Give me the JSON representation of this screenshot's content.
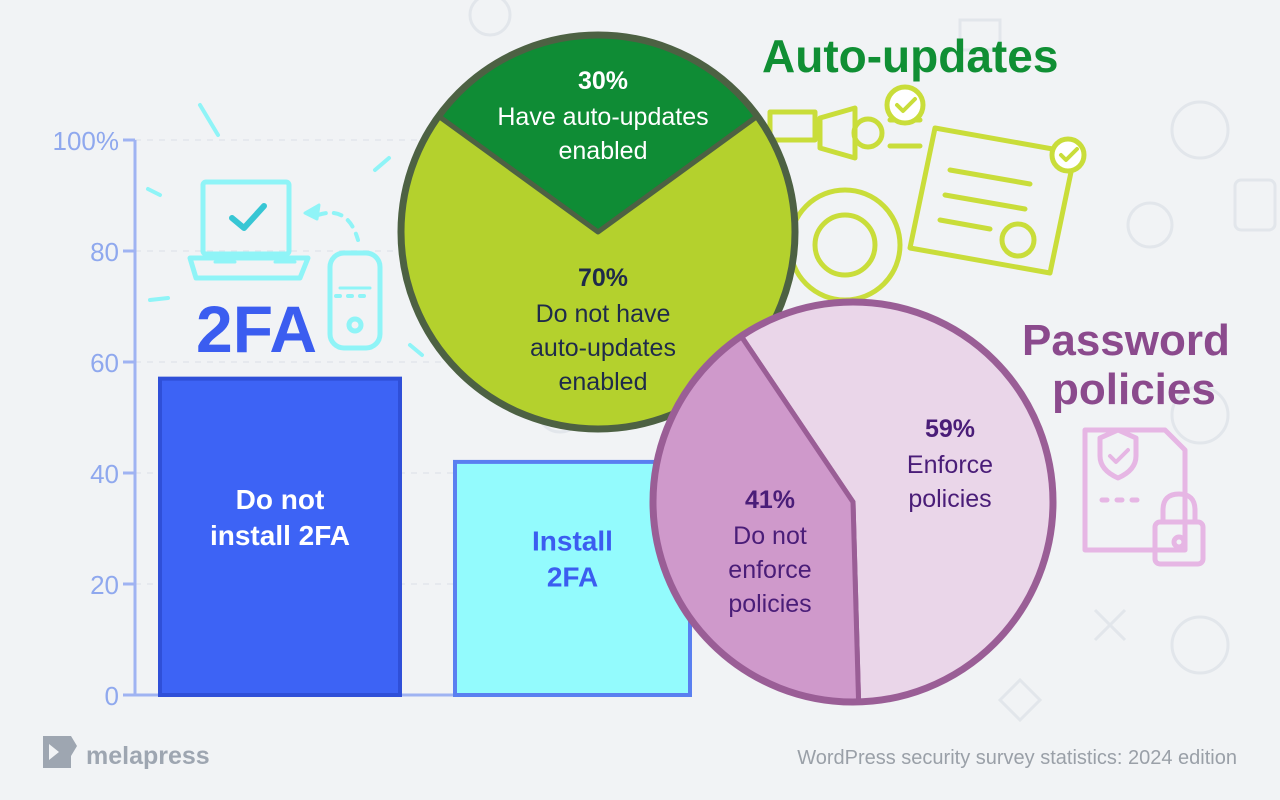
{
  "colors": {
    "background": "#f1f3f5",
    "axis": "#9fb3f2",
    "axis_text": "#8fa8ee",
    "bar_dark": "#3d63f5",
    "bar_light": "#93fbfd",
    "label_blue": "#3b5df0",
    "pie_green_dark": "#0f8c35",
    "pie_green_light": "#b4d12d",
    "pie_green_outline": "#4d6143",
    "pie_purple_dark": "#cf99cb",
    "pie_purple_light": "#ead6e9",
    "pie_purple_outline": "#9a5e96",
    "text_purple": "#4a1d78",
    "title_green": "#108f34",
    "title_purple": "#8b4a8d",
    "footer": "#9aa0a8",
    "brand": "#9ea6b1"
  },
  "icons": [
    "laptop-check-icon",
    "phone-password-icon",
    "plugin-update-icon",
    "browser-check-icon",
    "gear-icon",
    "shield-document-icon",
    "lock-icon",
    "melapress-logo-icon"
  ],
  "titles": {
    "twofa": "2FA",
    "auto_updates": "Auto-updates",
    "password_line1": "Password",
    "password_line2": "policies"
  },
  "footer": {
    "brand": "melapress",
    "caption": "WordPress security survey statistics: 2024 edition"
  },
  "chart_data": [
    {
      "type": "bar",
      "title": "2FA",
      "categories": [
        "Do not install 2FA",
        "Install 2FA"
      ],
      "values": [
        57,
        42
      ],
      "label_lines": [
        [
          "Do not",
          "install 2FA"
        ],
        [
          "Install",
          "2FA"
        ]
      ],
      "bar_colors": [
        "#3d63f5",
        "#93fbfd"
      ],
      "label_colors": [
        "#ffffff",
        "#3b5df0"
      ],
      "ylim": [
        0,
        100
      ],
      "yticks": [
        0,
        20,
        40,
        60,
        80,
        100
      ],
      "ytick_labels": [
        "0",
        "20",
        "40",
        "60",
        "80",
        "100%"
      ],
      "grid": true
    },
    {
      "type": "pie",
      "title": "Auto-updates",
      "slices": [
        {
          "label": "Have auto-updates enabled",
          "percent_label": "30%",
          "value": 30,
          "label_lines": [
            "Have auto-updates",
            "enabled"
          ],
          "color": "#0f8c35",
          "text_color": "#ffffff"
        },
        {
          "label": "Do not have auto-updates enabled",
          "percent_label": "70%",
          "value": 70,
          "label_lines": [
            "Do not have",
            "auto-updates",
            "enabled"
          ],
          "color": "#b4d12d",
          "text_color": "#1f2b4a"
        }
      ]
    },
    {
      "type": "pie",
      "title": "Password policies",
      "slices": [
        {
          "label": "Enforce policies",
          "percent_label": "59%",
          "value": 59,
          "label_lines": [
            "Enforce",
            "policies"
          ],
          "color": "#ead6e9",
          "text_color": "#4a1d78"
        },
        {
          "label": "Do not enforce policies",
          "percent_label": "41%",
          "value": 41,
          "label_lines": [
            "Do not",
            "enforce",
            "policies"
          ],
          "color": "#cf99cb",
          "text_color": "#4a1d78"
        }
      ]
    }
  ]
}
